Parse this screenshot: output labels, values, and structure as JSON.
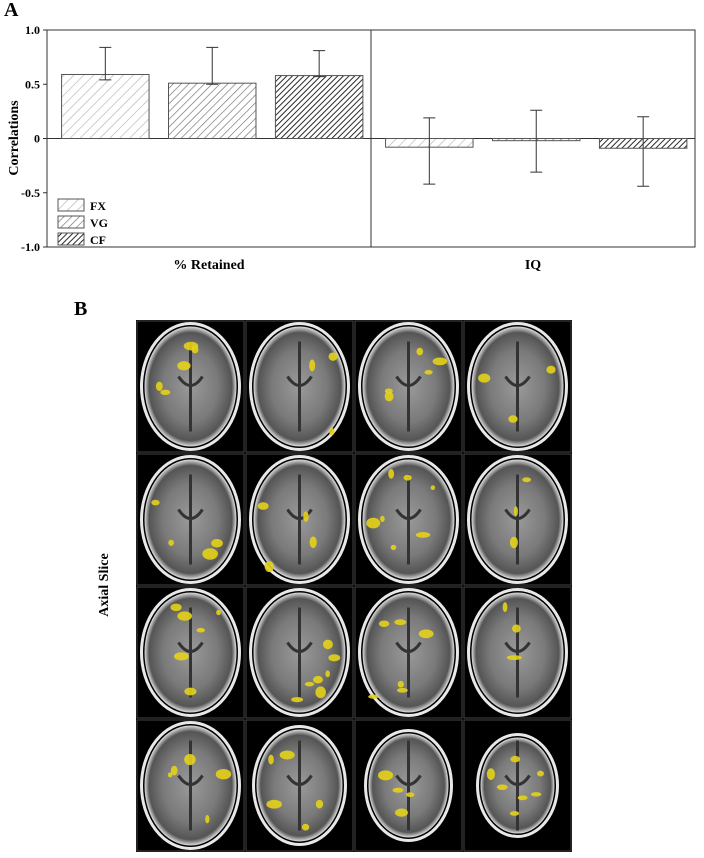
{
  "chart_data": {
    "type": "bar",
    "ylabel": "Correlations",
    "categories": [
      "% Retained",
      "IQ"
    ],
    "series": [
      {
        "name": "FX",
        "color": "#b4b4b4",
        "values": [
          0.59,
          -0.08
        ],
        "lower": [
          0.54,
          -0.42
        ],
        "upper": [
          0.84,
          0.19
        ]
      },
      {
        "name": "VG",
        "color": "#6e6e6e",
        "values": [
          0.51,
          -0.02
        ],
        "lower": [
          0.5,
          -0.31
        ],
        "upper": [
          0.84,
          0.26
        ]
      },
      {
        "name": "CF",
        "color": "#2a2a2a",
        "values": [
          0.58,
          -0.09
        ],
        "lower": [
          0.57,
          -0.44
        ],
        "upper": [
          0.81,
          0.2
        ]
      }
    ],
    "ylim": [
      -1,
      1
    ],
    "yticks": [
      {
        "value": -1,
        "label": "-1.0"
      },
      {
        "value": -0.5,
        "label": "-0.5"
      },
      0,
      {
        "value": 0.5,
        "label": "0.5"
      },
      {
        "value": 1,
        "label": "1.0"
      }
    ],
    "legend": "lower left"
  },
  "panels": {
    "a_label": "A",
    "b_label": "B",
    "b_axis_label": "Axial Slice"
  }
}
